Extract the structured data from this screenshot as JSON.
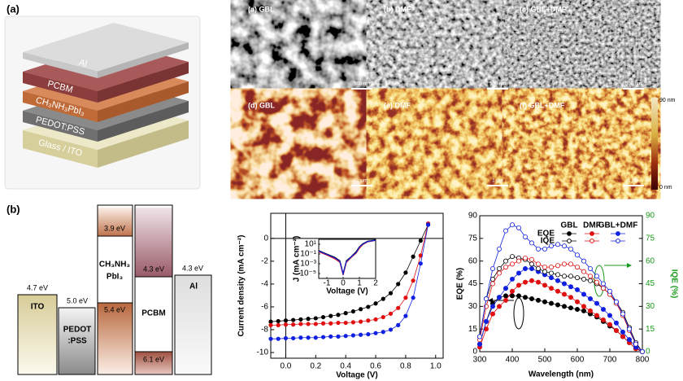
{
  "panel_labels": [
    "(a)",
    "(b)"
  ],
  "device_stack": {
    "layers": [
      "Al",
      "PCBM",
      "CH₃NH₃PbI₃",
      "PEDOT:PSS",
      "Glass / ITO"
    ]
  },
  "micrographs": {
    "images": [
      {
        "label": "(a) GBL",
        "scale_bar": "500 nm"
      },
      {
        "label": "(b) DMF",
        "scale_bar": "500 nm"
      },
      {
        "label": "(c) GBL+DMF",
        "scale_bar": "500 nm"
      },
      {
        "label": "(d) GBL",
        "scale_bar": "1 μm"
      },
      {
        "label": "(e) DMF",
        "scale_bar": "1 μm"
      },
      {
        "label": "(f) GBL+DMF",
        "scale_bar": "1 μm"
      }
    ],
    "colorbar": {
      "max": "90 nm",
      "min": "0 nm"
    }
  },
  "energy_diagram": {
    "materials": [
      {
        "lines": [
          "ITO"
        ],
        "levels": [
          "4.7 eV"
        ]
      },
      {
        "lines": [
          "PEDOT",
          ":PSS"
        ],
        "levels": [
          "5.0 eV"
        ]
      },
      {
        "lines": [
          "CH₃NH₃",
          "PbI₃"
        ],
        "levels": [
          "3.9 eV",
          "5.4 eV"
        ]
      },
      {
        "lines": [
          "PCBM"
        ],
        "levels": [
          "4.3 eV",
          "6.1 eV"
        ]
      },
      {
        "lines": [
          "Al"
        ],
        "levels": [
          "4.3 eV"
        ]
      }
    ]
  },
  "chart_data": [
    {
      "type": "line",
      "markers": true,
      "x_label": "Voltage (V)",
      "y_label": "Current density (mA cm⁻²)",
      "x": [
        -0.1,
        -0.05,
        0,
        0.05,
        0.1,
        0.15,
        0.2,
        0.25,
        0.3,
        0.35,
        0.4,
        0.45,
        0.5,
        0.55,
        0.6,
        0.65,
        0.7,
        0.75,
        0.8,
        0.85,
        0.9,
        0.95
      ],
      "series": [
        {
          "color": "#000000",
          "values": [
            -7.3,
            -7.25,
            -7.2,
            -7.15,
            -7.1,
            -7.05,
            -7.0,
            -6.9,
            -6.8,
            -6.7,
            -6.55,
            -6.4,
            -6.2,
            -6.0,
            -5.7,
            -5.3,
            -4.8,
            -4.0,
            -3.0,
            -1.6,
            -0.2,
            1.2
          ]
        },
        {
          "color": "#e01010",
          "values": [
            -7.6,
            -7.6,
            -7.55,
            -7.55,
            -7.5,
            -7.5,
            -7.5,
            -7.45,
            -7.45,
            -7.4,
            -7.4,
            -7.35,
            -7.3,
            -7.2,
            -7.1,
            -6.9,
            -6.6,
            -6.1,
            -5.2,
            -3.7,
            -1.5,
            1.3
          ]
        },
        {
          "color": "#1020e0",
          "values": [
            -8.8,
            -8.8,
            -8.75,
            -8.75,
            -8.7,
            -8.7,
            -8.7,
            -8.65,
            -8.6,
            -8.6,
            -8.55,
            -8.5,
            -8.45,
            -8.4,
            -8.3,
            -8.2,
            -8.0,
            -7.6,
            -6.8,
            -5.2,
            -2.2,
            1.2
          ]
        }
      ],
      "xlim": [
        -0.1,
        1.05
      ],
      "ylim": [
        -10.5,
        2.2
      ],
      "xticks": [
        {
          "value": 0,
          "label": "0.0"
        },
        0.2,
        0.4,
        0.6,
        0.8,
        {
          "value": 1,
          "label": "1.0"
        }
      ],
      "yticks": [
        0,
        -2,
        -4,
        -6,
        -8,
        -10
      ]
    },
    {
      "type": "line",
      "markers": false,
      "log_y": true,
      "x_label": "Voltage (V)",
      "y_label": "J (mA cm⁻²)",
      "x": [
        -1.5,
        -1,
        -0.5,
        -0.2,
        0,
        0.2,
        0.5,
        0.8,
        1,
        1.2,
        1.5,
        2
      ],
      "series": [
        {
          "color": "#000000",
          "values": [
            0.5,
            0.1,
            0.02,
            0.004,
            1e-05,
            0.004,
            0.03,
            0.3,
            3,
            12,
            40,
            70
          ]
        },
        {
          "color": "#e01010",
          "values": [
            0.3,
            0.06,
            0.01,
            0.002,
            5e-06,
            0.002,
            0.02,
            0.15,
            1.5,
            8,
            30,
            60
          ]
        },
        {
          "color": "#1020e0",
          "values": [
            0.4,
            0.08,
            0.015,
            0.003,
            8e-06,
            0.003,
            0.025,
            0.2,
            2.5,
            10,
            35,
            65
          ]
        }
      ],
      "xlim": [
        -1.5,
        2
      ],
      "ylim": [
        1e-06,
        100
      ],
      "xticks": [
        -1,
        0,
        1,
        2
      ],
      "yticks": [
        {
          "value": 10,
          "label": "10¹"
        },
        {
          "value": 0.1,
          "label": "10⁻¹"
        },
        {
          "value": 0.001,
          "label": "10⁻³"
        },
        {
          "value": 1e-05,
          "label": "10⁻⁵"
        }
      ]
    },
    {
      "type": "line",
      "markers": true,
      "x_label": "Wavelength (nm)",
      "y_label": "EQE (%)",
      "y2_label": "IQE (%)",
      "y2_color": "#1a9a1a",
      "x": [
        300,
        320,
        340,
        360,
        380,
        400,
        420,
        440,
        460,
        480,
        500,
        520,
        540,
        560,
        580,
        600,
        620,
        640,
        660,
        680,
        700,
        720,
        740,
        760,
        780,
        800
      ],
      "series": [
        {
          "name": "GBL",
          "kind": "EQE",
          "color": "#000000",
          "filled": true,
          "values": [
            5,
            20,
            32,
            36,
            37,
            37,
            37,
            36,
            35,
            34,
            33,
            32,
            31,
            30,
            29,
            28,
            27,
            25,
            23,
            20,
            17,
            14,
            10,
            6,
            2,
            0
          ]
        },
        {
          "name": "DMF",
          "kind": "EQE",
          "color": "#e01010",
          "filled": true,
          "values": [
            3,
            15,
            25,
            30,
            34,
            40,
            44,
            46,
            47,
            46,
            44,
            42,
            40,
            38,
            36,
            33,
            30,
            27,
            24,
            21,
            18,
            14,
            10,
            6,
            2,
            0
          ]
        },
        {
          "name": "GBL+DMF",
          "kind": "EQE",
          "color": "#1020e0",
          "filled": true,
          "values": [
            5,
            20,
            30,
            36,
            42,
            48,
            52,
            55,
            55,
            53,
            51,
            49,
            47,
            45,
            43,
            41,
            38,
            35,
            32,
            28,
            24,
            19,
            13,
            8,
            3,
            0
          ]
        },
        {
          "name": "GBL",
          "kind": "IQE",
          "color": "#000000",
          "filled": false,
          "axis": "y2",
          "values": [
            10,
            35,
            48,
            55,
            60,
            63,
            62,
            61,
            58,
            55,
            53,
            52,
            51,
            50,
            50,
            49,
            48,
            47,
            45,
            42,
            38,
            33,
            26,
            16,
            6,
            0
          ]
        },
        {
          "name": "DMF",
          "kind": "IQE",
          "color": "#e01010",
          "filled": false,
          "axis": "y2",
          "values": [
            8,
            30,
            45,
            52,
            56,
            58,
            60,
            62,
            61,
            58,
            56,
            56,
            57,
            58,
            58,
            56,
            53,
            50,
            46,
            42,
            38,
            32,
            24,
            14,
            5,
            0
          ]
        },
        {
          "name": "GBL+DMF",
          "kind": "IQE",
          "color": "#1020e0",
          "filled": false,
          "axis": "y2",
          "values": [
            10,
            35,
            55,
            68,
            80,
            84,
            82,
            76,
            72,
            68,
            68,
            70,
            71,
            70,
            68,
            64,
            60,
            55,
            50,
            45,
            40,
            33,
            25,
            15,
            5,
            0
          ]
        }
      ],
      "xlim": [
        300,
        800
      ],
      "ylim": [
        0,
        90
      ],
      "y2lim": [
        0,
        90
      ],
      "xticks": [
        300,
        400,
        500,
        600,
        700,
        800
      ],
      "yticks": [
        0,
        15,
        30,
        45,
        60,
        75,
        90
      ],
      "y2ticks": [
        0,
        15,
        30,
        45,
        60,
        75,
        90
      ]
    }
  ]
}
